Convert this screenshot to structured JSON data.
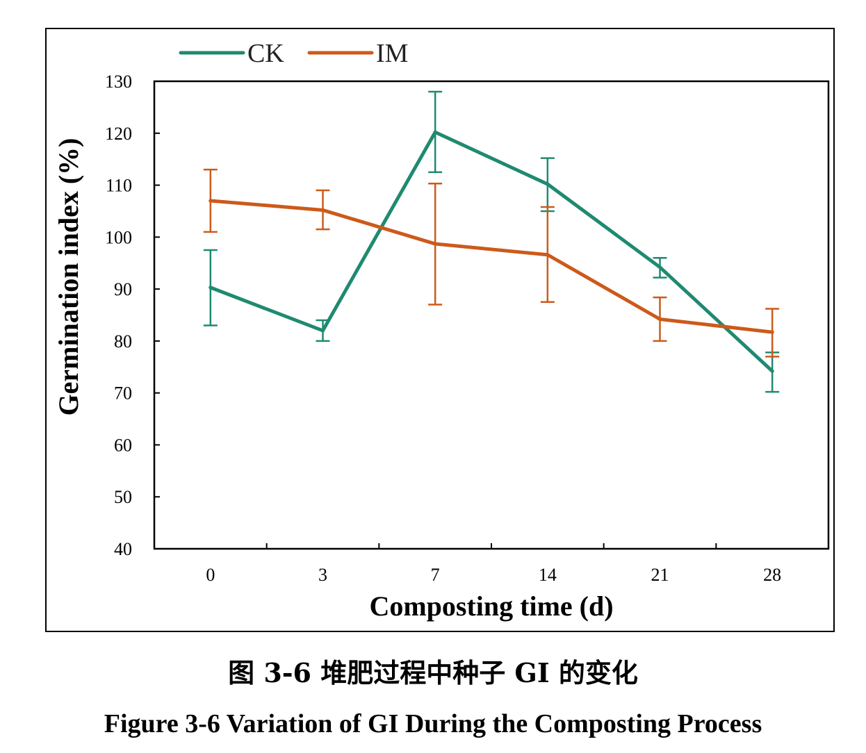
{
  "chart_data": {
    "type": "line",
    "categories": [
      "0",
      "3",
      "7",
      "14",
      "21",
      "28"
    ],
    "xlabel": "Composting time (d)",
    "ylabel": "Germination index (%)",
    "ylim": [
      40,
      130
    ],
    "yticks": [
      "40",
      "50",
      "60",
      "70",
      "80",
      "90",
      "100",
      "110",
      "120",
      "130"
    ],
    "legend_position": "top-left",
    "grid": false,
    "series": [
      {
        "name": "CK",
        "color": "#1f8a70",
        "values": [
          90.3,
          82.0,
          120.2,
          110.2,
          94.2,
          74.2
        ],
        "err_low": [
          83.0,
          80.0,
          112.5,
          105.0,
          92.2,
          70.2
        ],
        "err_high": [
          97.5,
          84.0,
          128.0,
          115.2,
          96.0,
          77.8
        ]
      },
      {
        "name": "IM",
        "color": "#cc5a1a",
        "values": [
          107.0,
          105.2,
          98.7,
          96.6,
          84.2,
          81.7
        ],
        "err_low": [
          101.0,
          101.5,
          87.0,
          87.5,
          80.0,
          77.0
        ],
        "err_high": [
          113.0,
          109.0,
          110.3,
          105.8,
          88.4,
          86.2
        ]
      }
    ]
  },
  "captions": {
    "chinese": "图 3-6  堆肥过程中种子 GI 的变化",
    "english": "Figure 3-6 Variation of GI During the Composting Process"
  }
}
